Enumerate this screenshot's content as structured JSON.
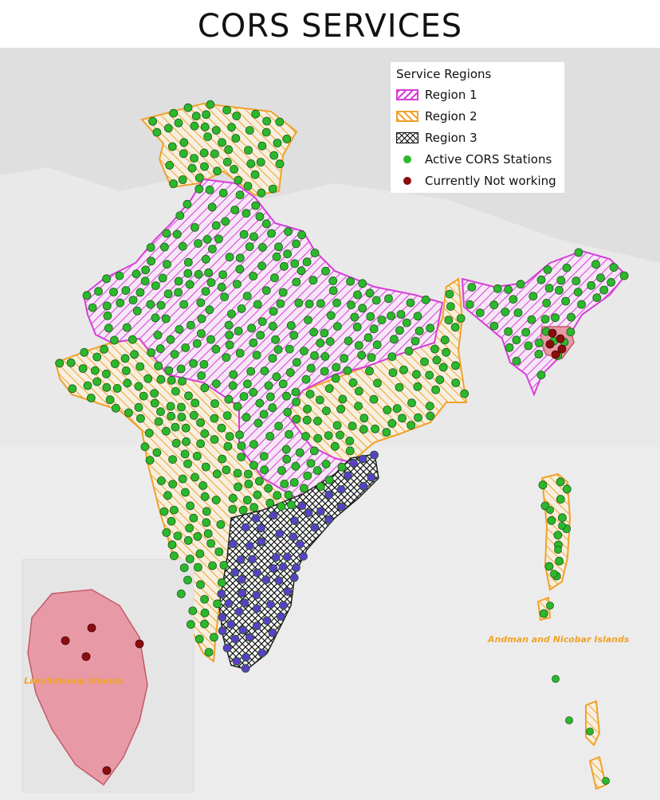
{
  "title": "CORS SERVICES",
  "legend": {
    "title": "Service Regions",
    "items": [
      {
        "label": "Region 1",
        "kind": "hatch",
        "color": "#d63fd8"
      },
      {
        "label": "Region 2",
        "kind": "hatch",
        "color": "#f0a22a"
      },
      {
        "label": "Region 3",
        "kind": "crosshatch",
        "color": "#111111"
      },
      {
        "label": "Active CORS Stations",
        "kind": "dot",
        "color": "#2cb82c"
      },
      {
        "label": "Currently Not working",
        "kind": "dot",
        "color": "#8b0e0e"
      }
    ]
  },
  "labels": {
    "andaman": "Andman and Nicobar Islands",
    "lakshadweep": "Lakshdweep Islands"
  },
  "colors": {
    "region1": "#d63fd8",
    "region2": "#f0a22a",
    "region3_fill": "#5b3fc4",
    "active": "#2cb82c",
    "inactive": "#8b0e0e",
    "lakshadweep_fill": "#e79aa6"
  }
}
